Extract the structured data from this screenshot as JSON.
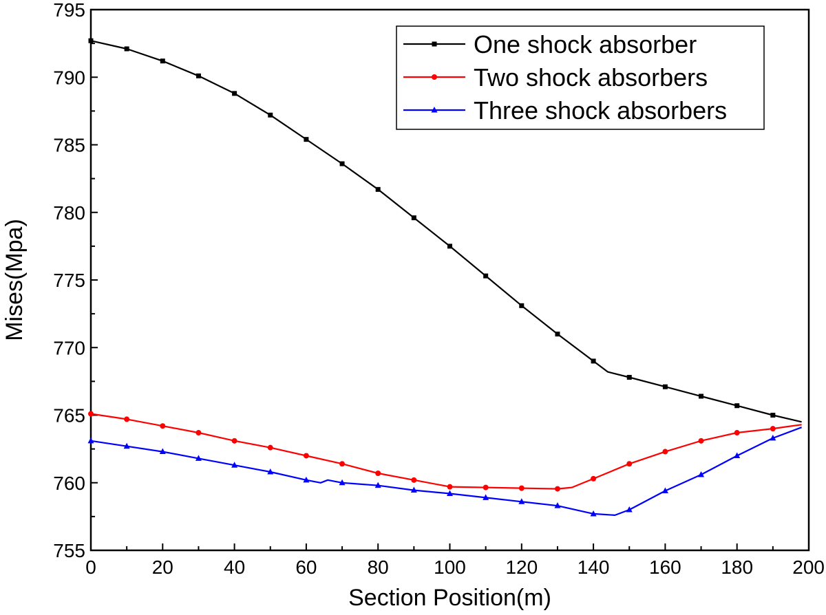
{
  "chart_data": {
    "type": "line",
    "title": "",
    "xlabel": "Section Position(m)",
    "ylabel": "Mises(Mpa)",
    "xlim": [
      0,
      200
    ],
    "ylim": [
      755,
      795
    ],
    "xticks": [
      0,
      20,
      40,
      60,
      80,
      100,
      120,
      140,
      160,
      180,
      200
    ],
    "yticks": [
      755,
      760,
      765,
      770,
      775,
      780,
      785,
      790,
      795
    ],
    "grid": false,
    "legend": "top-right",
    "series": [
      {
        "name": "One shock absorber",
        "color": "#000000",
        "marker": "square",
        "x": [
          0,
          10,
          20,
          30,
          40,
          50,
          60,
          70,
          80,
          90,
          100,
          110,
          120,
          130,
          140,
          144,
          150,
          160,
          170,
          180,
          190,
          198
        ],
        "values": [
          792.7,
          792.1,
          791.2,
          790.1,
          788.8,
          787.2,
          785.4,
          783.6,
          781.7,
          779.6,
          777.5,
          775.3,
          773.1,
          771.0,
          769.0,
          768.2,
          767.8,
          767.1,
          766.4,
          765.7,
          765.0,
          764.5
        ]
      },
      {
        "name": "Two shock absorbers",
        "color": "#ff0000",
        "marker": "circle",
        "x": [
          0,
          10,
          20,
          30,
          40,
          50,
          60,
          70,
          80,
          90,
          100,
          110,
          120,
          130,
          134,
          140,
          150,
          160,
          170,
          180,
          190,
          198
        ],
        "values": [
          765.1,
          764.7,
          764.2,
          763.7,
          763.1,
          762.6,
          762.0,
          761.4,
          760.7,
          760.2,
          759.7,
          759.65,
          759.6,
          759.55,
          759.65,
          760.3,
          761.4,
          762.3,
          763.1,
          763.7,
          764.0,
          764.3
        ]
      },
      {
        "name": "Three shock absorbers",
        "color": "#0000ff",
        "marker": "triangle",
        "x": [
          0,
          10,
          20,
          30,
          40,
          50,
          60,
          64,
          66,
          70,
          80,
          90,
          100,
          110,
          120,
          130,
          140,
          146,
          150,
          160,
          170,
          180,
          190,
          198
        ],
        "values": [
          763.1,
          762.7,
          762.3,
          761.8,
          761.3,
          760.8,
          760.2,
          760.0,
          760.2,
          760.0,
          759.8,
          759.45,
          759.2,
          758.9,
          758.6,
          758.3,
          757.7,
          757.6,
          758.0,
          759.4,
          760.6,
          762.0,
          763.3,
          764.1
        ]
      }
    ]
  }
}
